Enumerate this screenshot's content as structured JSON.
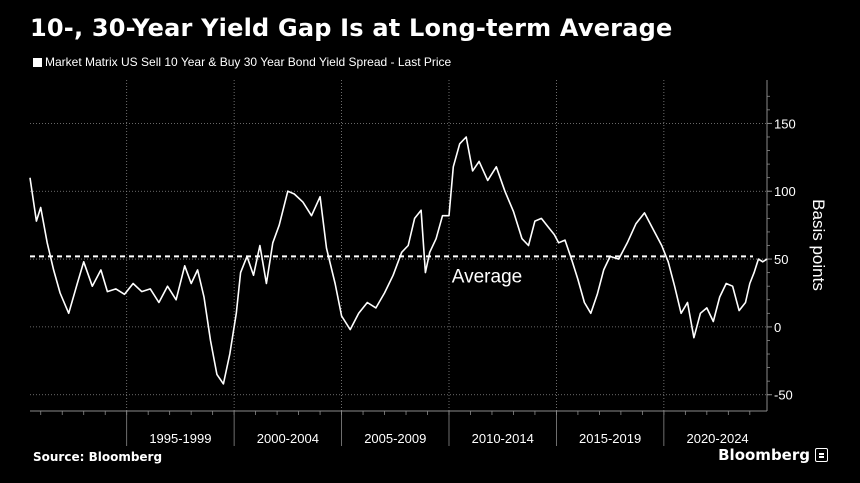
{
  "header": {
    "title": "10-, 30-Year Yield Gap Is at Long-term Average",
    "legend_label": "Market Matrix US Sell 10 Year & Buy 30 Year Bond Yield Spread - Last Price"
  },
  "footer": {
    "source": "Source: Bloomberg",
    "brand": "Bloomberg",
    "brand_icon": "bloomberg-terminal-icon"
  },
  "colors": {
    "background": "#000000",
    "line": "#ffffff",
    "grid": "#8a8a8a"
  },
  "chart_data": {
    "type": "line",
    "title": "10-, 30-Year Yield Gap Is at Long-term Average",
    "ylabel": "Basis points",
    "ylim": [
      -62,
      182
    ],
    "yticks": [
      -50,
      0,
      50,
      100,
      150
    ],
    "grid": true,
    "y_axis_side": "right",
    "x_periods": [
      "1995-1999",
      "2000-2004",
      "2005-2009",
      "2010-2014",
      "2015-2019",
      "2020-2024"
    ],
    "xlim": [
      1990.5,
      2024.8
    ],
    "average": {
      "label": "Average",
      "value": 52
    },
    "series": [
      {
        "name": "Market Matrix US Sell 10 Year & Buy 30 Year Bond Yield Spread - Last Price",
        "x": [
          1990.5,
          1990.8,
          1991.0,
          1991.3,
          1991.6,
          1991.9,
          1992.3,
          1992.7,
          1993.0,
          1993.4,
          1993.8,
          1994.1,
          1994.5,
          1994.9,
          1995.3,
          1995.7,
          1996.1,
          1996.5,
          1996.9,
          1997.3,
          1997.7,
          1998.0,
          1998.3,
          1998.6,
          1998.9,
          1999.2,
          1999.5,
          1999.8,
          2000.1,
          2000.3,
          2000.6,
          2000.9,
          2001.2,
          2001.5,
          2001.8,
          2002.1,
          2002.5,
          2002.8,
          2003.2,
          2003.6,
          2004.0,
          2004.3,
          2004.7,
          2005.0,
          2005.4,
          2005.8,
          2006.2,
          2006.6,
          2007.0,
          2007.4,
          2007.8,
          2008.1,
          2008.4,
          2008.7,
          2008.9,
          2009.1,
          2009.4,
          2009.7,
          2010.0,
          2010.2,
          2010.5,
          2010.8,
          2011.1,
          2011.4,
          2011.8,
          2012.2,
          2012.6,
          2013.0,
          2013.4,
          2013.7,
          2014.0,
          2014.3,
          2014.6,
          2014.9,
          2015.1,
          2015.4,
          2015.7,
          2016.0,
          2016.3,
          2016.6,
          2016.9,
          2017.2,
          2017.5,
          2017.9,
          2018.3,
          2018.7,
          2019.1,
          2019.5,
          2019.9,
          2020.2,
          2020.5,
          2020.8,
          2021.1,
          2021.4,
          2021.7,
          2022.0,
          2022.3,
          2022.6,
          2022.9,
          2023.2,
          2023.5,
          2023.8,
          2024.0,
          2024.2,
          2024.4,
          2024.6,
          2024.8
        ],
        "values": [
          110,
          78,
          88,
          62,
          42,
          25,
          10,
          32,
          48,
          30,
          42,
          26,
          28,
          24,
          32,
          26,
          28,
          18,
          30,
          20,
          45,
          32,
          42,
          22,
          -10,
          -35,
          -42,
          -20,
          10,
          40,
          52,
          38,
          60,
          32,
          62,
          75,
          100,
          98,
          92,
          82,
          96,
          58,
          32,
          8,
          -2,
          10,
          18,
          14,
          25,
          38,
          55,
          60,
          80,
          86,
          40,
          55,
          65,
          82,
          82,
          118,
          135,
          140,
          115,
          122,
          108,
          118,
          100,
          85,
          65,
          60,
          78,
          80,
          74,
          68,
          62,
          64,
          50,
          35,
          18,
          10,
          24,
          42,
          52,
          50,
          62,
          76,
          84,
          72,
          60,
          48,
          30,
          10,
          18,
          -8,
          10,
          14,
          4,
          22,
          32,
          30,
          12,
          18,
          32,
          40,
          50,
          48,
          50
        ]
      }
    ]
  }
}
